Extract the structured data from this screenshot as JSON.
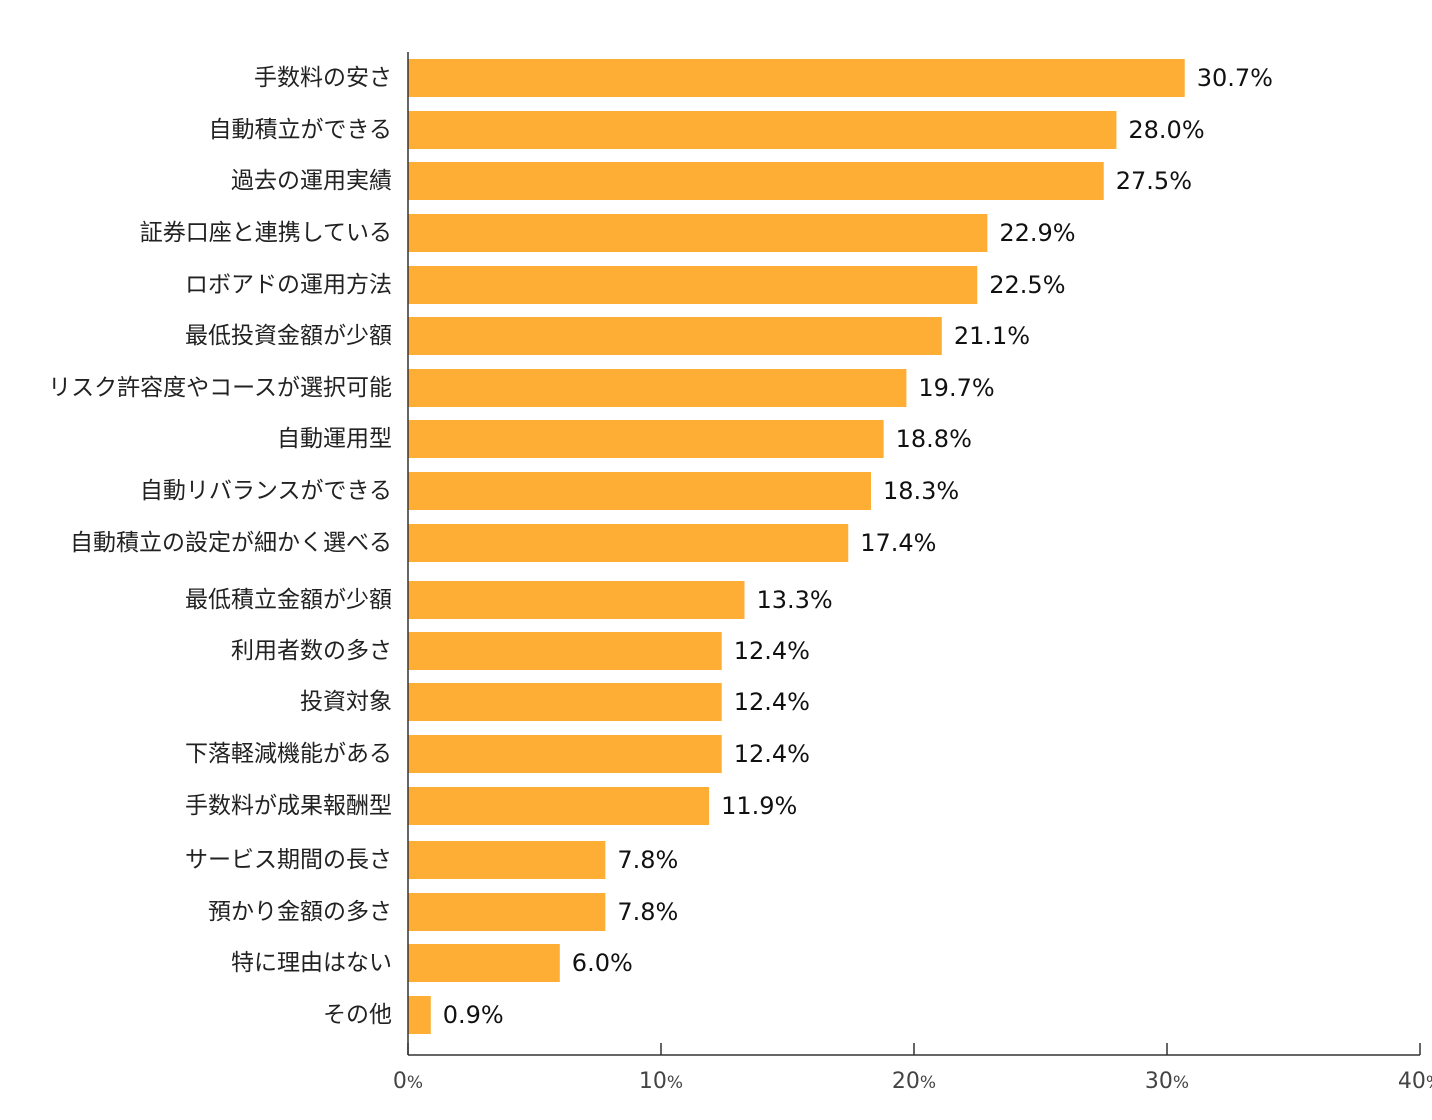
{
  "chart_data": {
    "type": "bar",
    "orientation": "horizontal",
    "categories": [
      "手数料の安さ",
      "自動積立ができる",
      "過去の運用実績",
      "証券口座と連携している",
      "ロボアドの運用方法",
      "最低投資金額が少額",
      "リスク許容度やコースが選択可能",
      "自動運用型",
      "自動リバランスができる",
      "自動積立の設定が細かく選べる",
      "最低積立金額が少額",
      "利用者数の多さ",
      "投資対象",
      "下落軽減機能がある",
      "手数料が成果報酬型",
      "サービス期間の長さ",
      "預かり金額の多さ",
      "特に理由はない",
      "その他"
    ],
    "values": [
      30.7,
      28.0,
      27.5,
      22.9,
      22.5,
      21.1,
      19.7,
      18.8,
      18.3,
      17.4,
      13.3,
      12.4,
      12.4,
      12.4,
      11.9,
      7.8,
      7.8,
      6.0,
      0.9
    ],
    "value_labels": [
      "30.7%",
      "28.0%",
      "27.5%",
      "22.9%",
      "22.5%",
      "21.1%",
      "19.7%",
      "18.8%",
      "18.3%",
      "17.4%",
      "13.3%",
      "12.4%",
      "12.4%",
      "12.4%",
      "11.9%",
      "7.8%",
      "7.8%",
      "6.0%",
      "0.9%"
    ],
    "xlim": [
      0,
      40
    ],
    "x_ticks": [
      {
        "num": "0",
        "unit": "%"
      },
      {
        "num": "10",
        "unit": "%"
      },
      {
        "num": "20",
        "unit": "%"
      },
      {
        "num": "30",
        "unit": "%"
      },
      {
        "num": "40",
        "unit": "%"
      }
    ],
    "tick_values": [
      0,
      10,
      20,
      30,
      40
    ],
    "title": "",
    "xlabel": "",
    "ylabel": "",
    "grid": false,
    "legend": "none",
    "colors": {
      "bar": "#FFAE35",
      "axis": "#333333",
      "label_text": "#222222",
      "value_text": "#111111"
    }
  }
}
